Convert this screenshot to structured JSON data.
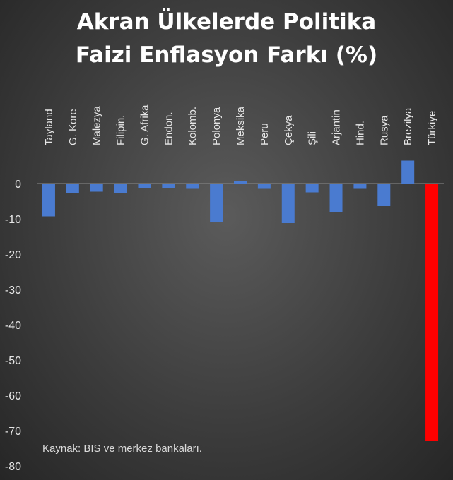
{
  "title_line1": "Akran Ülkelerde Politika",
  "title_line2": "Faizi Enflasyon Farkı (%)",
  "source_note": "Kaynak: BIS ve merkez bankaları.",
  "colors": {
    "bar": "#4a7bd0",
    "highlight": "#ff0000",
    "text": "#ffffff",
    "axis_text": "#e6e6e6"
  },
  "chart_data": {
    "type": "bar",
    "title": "Akran Ülkelerde Politika Faizi Enflasyon Farkı (%)",
    "categories": [
      "Tayland",
      "G. Kore",
      "Malezya",
      "Filipin.",
      "G. Afrika",
      "Endon.",
      "Kolomb.",
      "Polonya",
      "Meksika",
      "Peru",
      "Çekya",
      "Şili",
      "Arjantin",
      "Hind.",
      "Rusya",
      "Brezilya",
      "Türkiye"
    ],
    "values": [
      -9.3,
      -2.6,
      -2.3,
      -2.8,
      -1.4,
      -1.3,
      -1.5,
      -10.8,
      0.7,
      -1.5,
      -11.2,
      -2.5,
      -8.0,
      -1.5,
      -6.4,
      6.5,
      -73.0
    ],
    "highlight": "Türkiye",
    "ylim": [
      -80,
      10
    ],
    "yticks": [
      0,
      -10,
      -20,
      -30,
      -40,
      -50,
      -60,
      -70,
      -80
    ],
    "xlabel": "",
    "ylabel": "",
    "grid": false,
    "legend": "none",
    "category_axis_position": "top"
  }
}
